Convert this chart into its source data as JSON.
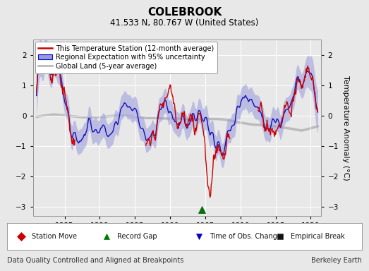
{
  "title": "COLEBROOK",
  "subtitle": "41.533 N, 80.767 W (United States)",
  "xlabel_left": "Data Quality Controlled and Aligned at Breakpoints",
  "xlabel_right": "Berkeley Earth",
  "ylabel": "Temperature Anomaly (°C)",
  "xlim": [
    1880.5,
    1921.5
  ],
  "ylim": [
    -3.3,
    2.5
  ],
  "yticks": [
    -3,
    -2,
    -1,
    0,
    1,
    2
  ],
  "xticks": [
    1885,
    1890,
    1895,
    1900,
    1905,
    1910,
    1915,
    1920
  ],
  "bg_color": "#e8e8e8",
  "plot_bg_color": "#e8e8e8",
  "station_color": "#cc0000",
  "regional_color": "#1111bb",
  "regional_fill_color": "#9999dd",
  "global_color": "#bbbbbb",
  "grid_color": "#ffffff",
  "legend_items": [
    "This Temperature Station (12-month average)",
    "Regional Expectation with 95% uncertainty",
    "Global Land (5-year average)"
  ],
  "marker_items": [
    {
      "label": "Station Move",
      "color": "#cc0000",
      "marker": "D"
    },
    {
      "label": "Record Gap",
      "color": "#007700",
      "marker": "^"
    },
    {
      "label": "Time of Obs. Change",
      "color": "#0000cc",
      "marker": "v"
    },
    {
      "label": "Empirical Break",
      "color": "#111111",
      "marker": "s"
    }
  ],
  "record_gap_x": 1904.5,
  "record_gap_y": -3.1
}
